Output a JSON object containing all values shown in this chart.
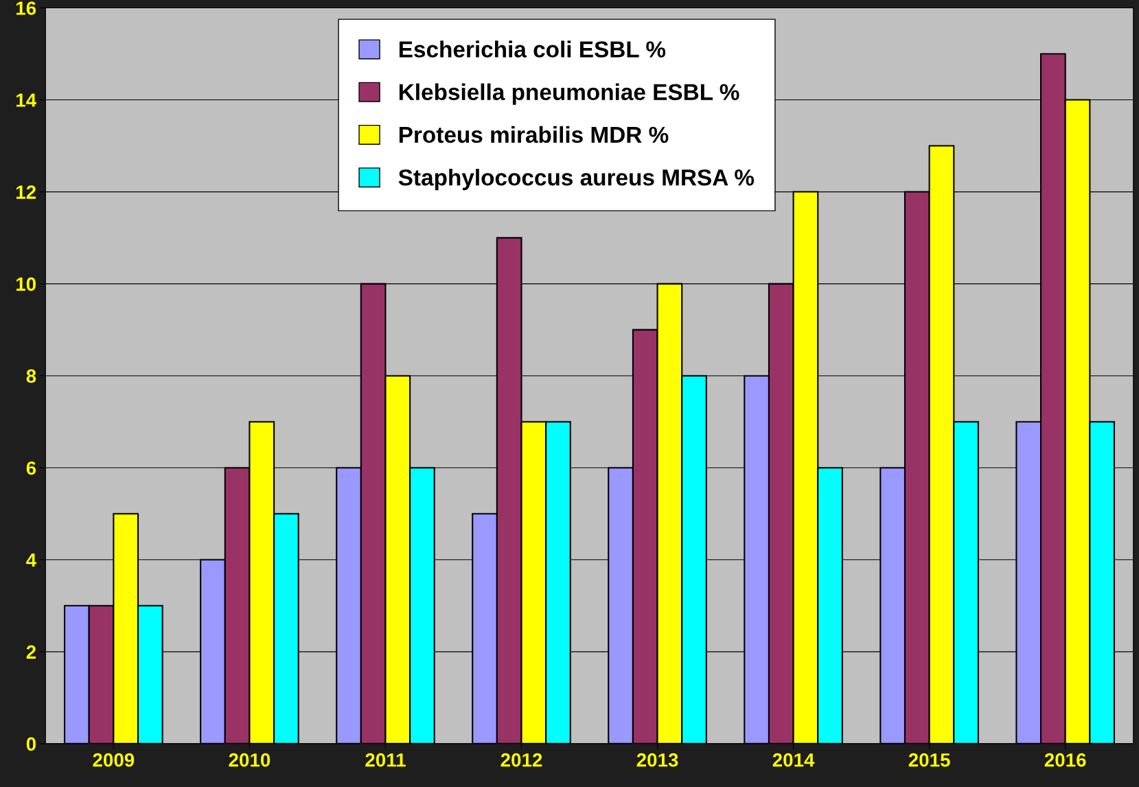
{
  "chart_data": {
    "type": "bar",
    "categories": [
      "2009",
      "2010",
      "2011",
      "2012",
      "2013",
      "2014",
      "2015",
      "2016"
    ],
    "series": [
      {
        "name": "Escherichia coli ESBL %",
        "color": "#9999ff",
        "values": [
          3,
          4,
          6,
          5,
          6,
          8,
          6,
          7
        ]
      },
      {
        "name": "Klebsiella pneumoniae ESBL %",
        "color": "#993366",
        "values": [
          3,
          6,
          10,
          11,
          9,
          10,
          12,
          15
        ]
      },
      {
        "name": "Proteus mirabilis MDR %",
        "color": "#ffff00",
        "values": [
          5,
          7,
          8,
          7,
          10,
          12,
          13,
          14
        ]
      },
      {
        "name": "Staphylococcus aureus MRSA %",
        "color": "#00ffff",
        "values": [
          3,
          5,
          6,
          7,
          8,
          6,
          7,
          7
        ]
      }
    ],
    "ylim": [
      0,
      16
    ],
    "yticks": [
      0,
      2,
      4,
      6,
      8,
      10,
      12,
      14,
      16
    ],
    "grid": "y",
    "legend": "top"
  }
}
